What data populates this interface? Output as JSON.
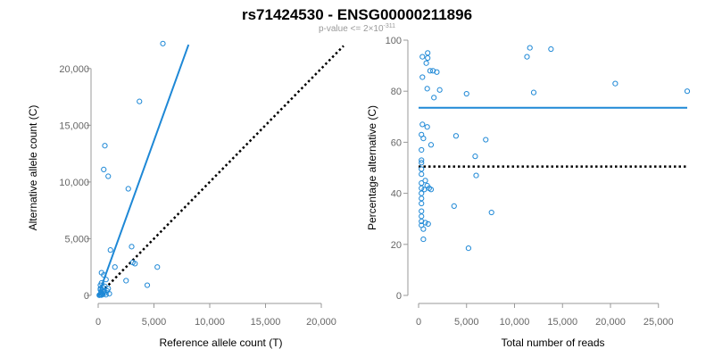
{
  "title": "rs71424530 - ENSG00000211896",
  "subtitle": {
    "prefix": "p-value <= 2×10",
    "exponent": "-311"
  },
  "colors": {
    "series": "#1e88d6",
    "reference": "#000000",
    "axis": "#999999",
    "tick_text": "#666666"
  },
  "chart_data": [
    {
      "type": "scatter",
      "xlabel": "Reference allele count (T)",
      "ylabel": "Alternative allele count (C)",
      "xlim": [
        0,
        22000
      ],
      "ylim": [
        0,
        22500
      ],
      "xticks": [
        0,
        5000,
        10000,
        15000,
        20000
      ],
      "yticks": [
        0,
        5000,
        10000,
        15000,
        20000
      ],
      "xtick_labels": [
        "0",
        "5,000",
        "10,000",
        "15,000",
        "20,000"
      ],
      "ytick_labels": [
        "0",
        "5,000",
        "10,000",
        "15,000",
        "20,000"
      ],
      "points": [
        [
          5800,
          22200
        ],
        [
          3700,
          17100
        ],
        [
          600,
          13200
        ],
        [
          500,
          11100
        ],
        [
          900,
          10500
        ],
        [
          2700,
          9400
        ],
        [
          1100,
          4000
        ],
        [
          3000,
          4300
        ],
        [
          5300,
          2500
        ],
        [
          3300,
          2800
        ],
        [
          4400,
          900
        ],
        [
          1500,
          2500
        ],
        [
          2500,
          1300
        ],
        [
          3100,
          2900
        ],
        [
          300,
          2000
        ],
        [
          500,
          1800
        ],
        [
          700,
          1400
        ],
        [
          300,
          1100
        ],
        [
          200,
          900
        ],
        [
          600,
          800
        ],
        [
          400,
          700
        ],
        [
          900,
          600
        ],
        [
          200,
          500
        ],
        [
          800,
          400
        ],
        [
          500,
          300
        ],
        [
          300,
          250
        ],
        [
          600,
          200
        ],
        [
          1000,
          150
        ],
        [
          200,
          100
        ],
        [
          400,
          80
        ],
        [
          150,
          50
        ],
        [
          700,
          60
        ],
        [
          300,
          30
        ],
        [
          100,
          20
        ],
        [
          500,
          400
        ],
        [
          200,
          600
        ],
        [
          350,
          150
        ]
      ],
      "fit_line": {
        "x": [
          0,
          8100
        ],
        "y": [
          0,
          22100
        ]
      },
      "reference_line": {
        "x": [
          0,
          22000
        ],
        "y": [
          0,
          22000
        ]
      }
    },
    {
      "type": "scatter",
      "xlabel": "Total number of reads",
      "ylabel": "Percentage alternative (C)",
      "xlim": [
        0,
        28000
      ],
      "ylim": [
        0,
        100
      ],
      "xticks": [
        0,
        5000,
        10000,
        15000,
        20000,
        25000
      ],
      "yticks": [
        0,
        20,
        40,
        60,
        80,
        100
      ],
      "xtick_labels": [
        "0",
        "5,000",
        "10,000",
        "15,000",
        "20,000",
        "25,000"
      ],
      "ytick_labels": [
        "0",
        "20",
        "40",
        "60",
        "80",
        "100"
      ],
      "points": [
        [
          11600,
          97
        ],
        [
          13800,
          96.5
        ],
        [
          11300,
          93.5
        ],
        [
          950,
          95
        ],
        [
          950,
          93
        ],
        [
          800,
          91
        ],
        [
          1200,
          88
        ],
        [
          1500,
          88
        ],
        [
          1900,
          87.5
        ],
        [
          400,
          93.5
        ],
        [
          400,
          85.5
        ],
        [
          900,
          81
        ],
        [
          2200,
          80.5
        ],
        [
          1600,
          77.5
        ],
        [
          5000,
          79
        ],
        [
          12000,
          79.5
        ],
        [
          20500,
          83
        ],
        [
          28000,
          80
        ],
        [
          400,
          67
        ],
        [
          900,
          66
        ],
        [
          300,
          63
        ],
        [
          500,
          61.5
        ],
        [
          1300,
          59
        ],
        [
          3900,
          62.5
        ],
        [
          7000,
          61
        ],
        [
          5900,
          54.5
        ],
        [
          300,
          57
        ],
        [
          300,
          53
        ],
        [
          300,
          52
        ],
        [
          300,
          49.5
        ],
        [
          300,
          47.5
        ],
        [
          6000,
          47
        ],
        [
          700,
          45
        ],
        [
          300,
          44
        ],
        [
          300,
          42
        ],
        [
          600,
          41.5
        ],
        [
          900,
          43
        ],
        [
          1100,
          42
        ],
        [
          1300,
          41.5
        ],
        [
          300,
          40
        ],
        [
          300,
          38
        ],
        [
          300,
          36
        ],
        [
          300,
          33
        ],
        [
          300,
          31
        ],
        [
          300,
          29
        ],
        [
          300,
          27.5
        ],
        [
          700,
          28.5
        ],
        [
          1000,
          28
        ],
        [
          500,
          26
        ],
        [
          500,
          22
        ],
        [
          3700,
          35
        ],
        [
          7600,
          32.5
        ],
        [
          5200,
          18.5
        ]
      ],
      "fit_line": {
        "x": [
          0,
          28000
        ],
        "y": [
          73.5,
          73.5
        ]
      },
      "reference_line": {
        "x": [
          0,
          28000
        ],
        "y": [
          50.5,
          50.5
        ]
      }
    }
  ]
}
